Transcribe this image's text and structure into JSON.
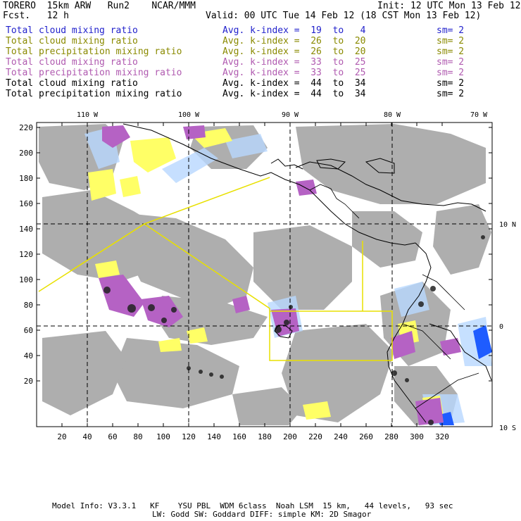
{
  "header": {
    "left_line1": "TORERO  15km ARW   Run2    NCAR/MMM",
    "left_line2": "Fcst.   12 h",
    "init": "Init: 12 UTC Mon 13 Feb 12",
    "valid": "Valid: 00 UTC Tue 14 Feb 12 (18 CST Mon 13 Feb 12)"
  },
  "legend": [
    {
      "name": "Total cloud mixing ratio",
      "range": "Avg. k-index =  19  to   4",
      "sm": "sm= 2",
      "color": "#2222cc"
    },
    {
      "name": "Total cloud mixing ratio",
      "range": "Avg. k-index =  26  to  20",
      "sm": "sm= 2",
      "color": "#8a8a00"
    },
    {
      "name": "Total precipitation mixing ratio",
      "range": "Avg. k-index =  26  to  20",
      "sm": "sm= 2",
      "color": "#8a8a00"
    },
    {
      "name": "Total cloud mixing ratio",
      "range": "Avg. k-index =  33  to  25",
      "sm": "sm= 2",
      "color": "#b05ab0"
    },
    {
      "name": "Total precipitation mixing ratio",
      "range": "Avg. k-index =  33  to  25",
      "sm": "sm= 2",
      "color": "#b05ab0"
    },
    {
      "name": "Total cloud mixing ratio",
      "range": "Avg. k-index =  44  to  34",
      "sm": "sm= 2",
      "color": "#000000"
    },
    {
      "name": "Total precipitation mixing ratio",
      "range": "Avg. k-index =  44  to  34",
      "sm": "sm= 2",
      "color": "#000000"
    }
  ],
  "map": {
    "lon_labels": [
      "110 W",
      "100 W",
      "90 W",
      "80 W",
      "70 W"
    ],
    "lat_labels": [
      "10 N",
      "0",
      "10 S"
    ],
    "x_ticks": [
      "20",
      "40",
      "60",
      "80",
      "100",
      "120",
      "140",
      "160",
      "180",
      "200",
      "220",
      "240",
      "260",
      "280",
      "300",
      "320"
    ],
    "y_ticks": [
      "220",
      "200",
      "180",
      "160",
      "140",
      "120",
      "100",
      "80",
      "60",
      "40",
      "20"
    ],
    "colors": {
      "cloud_gray": "#aaaaaa",
      "yellow": "#ffff66",
      "purple": "#b562c4",
      "black": "#222222",
      "light_blue": "#b8d8ff",
      "blue": "#1e5cff",
      "flight_track": "#e8e000"
    }
  },
  "footer": {
    "line1": "Model Info: V3.3.1   KF    YSU PBL  WDM 6class  Noah LSM  15 km,   44 levels,   93 sec",
    "line2": "LW: Godd SW: Goddard DIFF: simple KM: 2D Smagor"
  }
}
